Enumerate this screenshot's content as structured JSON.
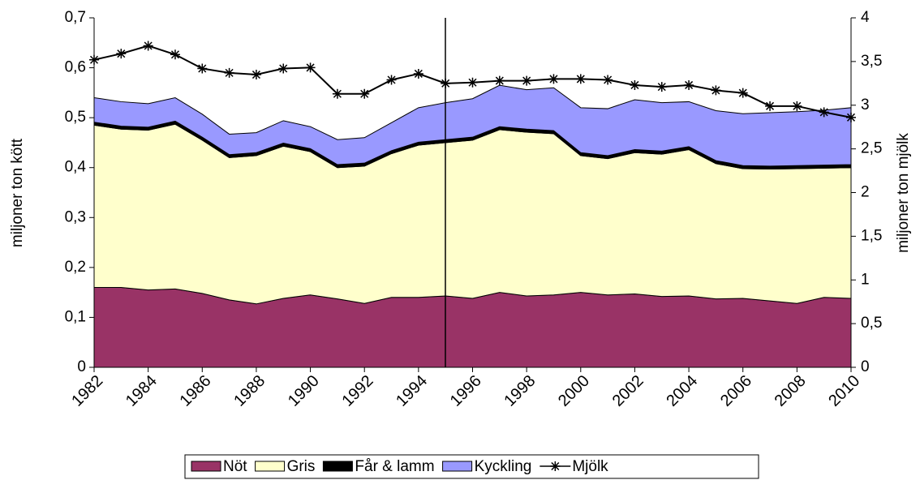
{
  "chart_data": {
    "type": "stacked-area-line",
    "ylabel": "miljoner ton kött",
    "y2label": "miljoner ton mjölk",
    "x": [
      1982,
      1983,
      1984,
      1985,
      1986,
      1987,
      1988,
      1989,
      1990,
      1991,
      1992,
      1993,
      1994,
      1995,
      1996,
      1997,
      1998,
      1999,
      2000,
      2001,
      2002,
      2003,
      2004,
      2005,
      2006,
      2007,
      2008,
      2009,
      2010
    ],
    "xlim": [
      1982,
      2010
    ],
    "xticks": [
      1982,
      1984,
      1986,
      1988,
      1990,
      1992,
      1994,
      1996,
      1998,
      2000,
      2002,
      2004,
      2006,
      2008,
      2010
    ],
    "ylim": [
      0,
      0.7
    ],
    "yticks": [
      0,
      {
        "value": 0.1,
        "label": "0,1"
      },
      {
        "value": 0.2,
        "label": "0,2"
      },
      {
        "value": 0.3,
        "label": "0,3"
      },
      {
        "value": 0.4,
        "label": "0,4"
      },
      {
        "value": 0.5,
        "label": "0,5"
      },
      {
        "value": 0.6,
        "label": "0,6"
      },
      {
        "value": 0.7,
        "label": "0,7"
      }
    ],
    "y2lim": [
      0,
      4
    ],
    "y2ticks": [
      0,
      {
        "value": 0.5,
        "label": "0,5"
      },
      1,
      {
        "value": 1.5,
        "label": "1,5"
      },
      2,
      {
        "value": 2.5,
        "label": "2,5"
      },
      3,
      {
        "value": 3.5,
        "label": "3,5"
      },
      4
    ],
    "series": [
      {
        "name": "Nöt",
        "color": "#993366",
        "values": [
          0.16,
          0.16,
          0.155,
          0.157,
          0.148,
          0.135,
          0.127,
          0.138,
          0.145,
          0.137,
          0.128,
          0.14,
          0.14,
          0.143,
          0.138,
          0.15,
          0.143,
          0.145,
          0.15,
          0.145,
          0.147,
          0.142,
          0.143,
          0.137,
          0.138,
          0.133,
          0.128,
          0.14,
          0.138
        ]
      },
      {
        "name": "Gris",
        "color": "#ffffcc",
        "values": [
          0.325,
          0.317,
          0.32,
          0.33,
          0.307,
          0.285,
          0.297,
          0.305,
          0.287,
          0.263,
          0.275,
          0.288,
          0.305,
          0.307,
          0.317,
          0.326,
          0.328,
          0.323,
          0.274,
          0.273,
          0.283,
          0.285,
          0.293,
          0.271,
          0.26,
          0.264,
          0.27,
          0.259,
          0.262
        ]
      },
      {
        "name": "Får & lamm",
        "color": "#000000",
        "values": [
          0.006,
          0.006,
          0.006,
          0.006,
          0.006,
          0.006,
          0.006,
          0.006,
          0.006,
          0.006,
          0.006,
          0.006,
          0.006,
          0.006,
          0.006,
          0.006,
          0.006,
          0.006,
          0.006,
          0.006,
          0.006,
          0.006,
          0.006,
          0.006,
          0.006,
          0.006,
          0.006,
          0.006,
          0.006
        ]
      },
      {
        "name": "Kyckling",
        "color": "#9999ff",
        "values": [
          0.049,
          0.049,
          0.047,
          0.047,
          0.046,
          0.041,
          0.04,
          0.045,
          0.044,
          0.05,
          0.051,
          0.056,
          0.069,
          0.074,
          0.077,
          0.083,
          0.079,
          0.086,
          0.09,
          0.094,
          0.1,
          0.097,
          0.09,
          0.1,
          0.104,
          0.107,
          0.108,
          0.11,
          0.114
        ]
      },
      {
        "name": "Mjölk",
        "color": "#000000",
        "axis": "y2",
        "values": [
          3.52,
          3.59,
          3.68,
          3.58,
          3.42,
          3.37,
          3.35,
          3.42,
          3.43,
          3.13,
          3.13,
          3.29,
          3.36,
          3.25,
          3.26,
          3.28,
          3.28,
          3.3,
          3.3,
          3.29,
          3.23,
          3.21,
          3.23,
          3.17,
          3.14,
          2.99,
          2.99,
          2.92,
          2.86
        ]
      }
    ]
  }
}
